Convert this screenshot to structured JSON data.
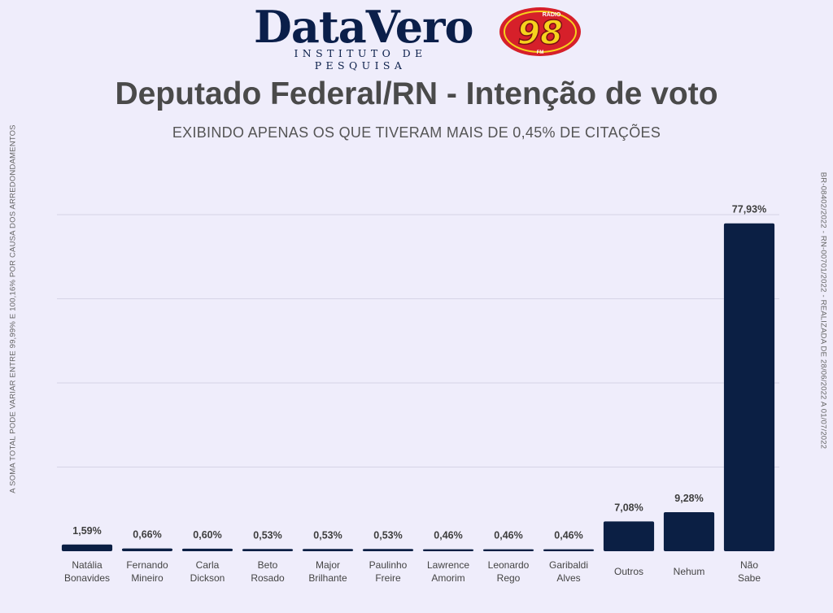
{
  "header": {
    "logo_main": "DataVero",
    "logo_sub": "INSTITUTO DE PESQUISA",
    "radio_number": "98",
    "radio_top": "RÁDIO",
    "radio_bottom": "FM",
    "colors": {
      "brand": "#0b1f4a",
      "radio_red": "#d6202a",
      "radio_yellow": "#f6d21d"
    }
  },
  "side_notes": {
    "left": "A SOMA TOTAL  PODE VARIAR ENTRE 99,99% E 100,16% POR CAUSA DOS ARREDONDAMENTOS",
    "right": "BR-08402/2022 - RN-00701/2022 - REALIZADA DE 28/06/2022 A 01/07/2022"
  },
  "chart_data": {
    "type": "bar",
    "title": "Deputado Federal/RN - Intenção de voto",
    "subtitle": "EXIBINDO APENAS OS QUE TIVERAM MAIS DE 0,45% DE CITAÇÕES",
    "categories": [
      [
        "Natália",
        "Bonavides"
      ],
      [
        "Fernando",
        "Mineiro"
      ],
      [
        "Carla",
        "Dickson"
      ],
      [
        "Beto",
        "Rosado"
      ],
      [
        "Major",
        "Brilhante"
      ],
      [
        "Paulinho",
        "Freire"
      ],
      [
        "Lawrence",
        "Amorim"
      ],
      [
        "Leonardo",
        "Rego"
      ],
      [
        "Garibaldi",
        "Alves"
      ],
      [
        "Outros"
      ],
      [
        "Nehum"
      ],
      [
        "Não",
        "Sabe"
      ]
    ],
    "values": [
      1.59,
      0.66,
      0.6,
      0.53,
      0.53,
      0.53,
      0.46,
      0.46,
      0.46,
      7.08,
      9.28,
      77.93
    ],
    "value_labels": [
      "1,59%",
      "0,66%",
      "0,60%",
      "0,53%",
      "0,53%",
      "0,53%",
      "0,46%",
      "0,46%",
      "0,46%",
      "7,08%",
      "9,28%",
      "77,93%"
    ],
    "ylim": [
      0,
      80
    ],
    "gridlines": [
      20,
      40,
      60,
      80
    ],
    "grid": true,
    "bar_color": "#0b1f44"
  }
}
